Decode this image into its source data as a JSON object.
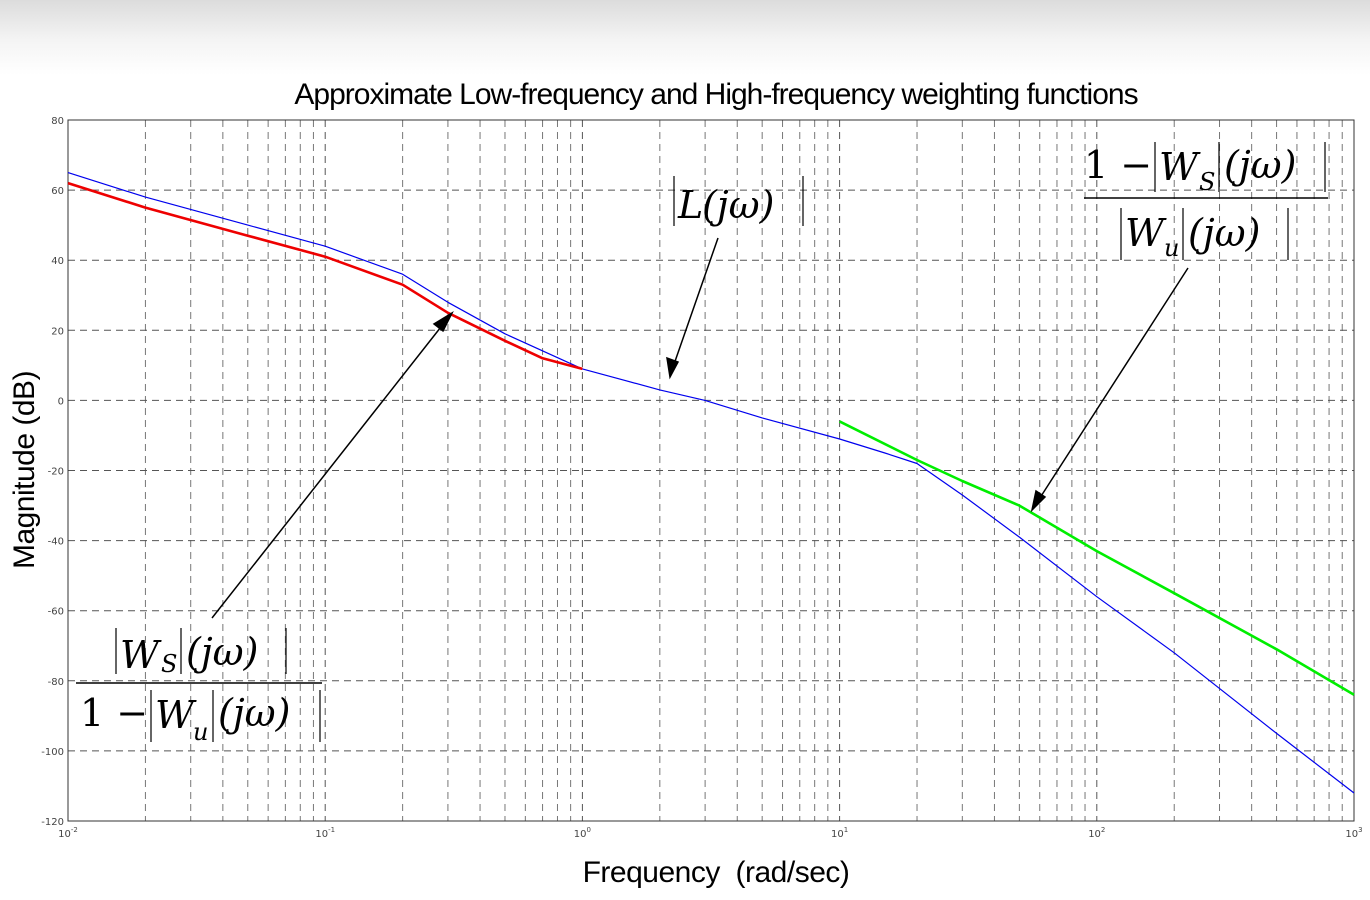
{
  "chart_data": {
    "type": "line",
    "title": "Approximate Low-frequency and High-frequency weighting functions",
    "xlabel": "Frequency  (rad/sec)",
    "ylabel": "Magnitude (dB)",
    "xscale": "log",
    "xlim": [
      0.01,
      1000
    ],
    "ylim": [
      -120,
      80
    ],
    "grid": true,
    "x_ticks": [
      {
        "base": "10",
        "exp": "-2"
      },
      {
        "base": "10",
        "exp": "-1"
      },
      {
        "base": "10",
        "exp": "0"
      },
      {
        "base": "10",
        "exp": "1"
      },
      {
        "base": "10",
        "exp": "2"
      },
      {
        "base": "10",
        "exp": "3"
      }
    ],
    "y_ticks": [
      "80",
      "60",
      "40",
      "20",
      "0",
      "-20",
      "-40",
      "-60",
      "-80",
      "-100",
      "-120"
    ],
    "series": [
      {
        "color": "#0000ee",
        "x": [
          0.01,
          0.02,
          0.05,
          0.1,
          0.2,
          0.3,
          0.5,
          1,
          2,
          3,
          5,
          10,
          15,
          20,
          30,
          50,
          100,
          200,
          500,
          1000
        ],
        "y": [
          65,
          58,
          50,
          44,
          36,
          28,
          19,
          9,
          3,
          0,
          -5,
          -11,
          -15,
          -18,
          -27,
          -39,
          -56,
          -72,
          -95,
          -112
        ]
      },
      {
        "color": "#ee0000",
        "x": [
          0.01,
          0.02,
          0.05,
          0.1,
          0.2,
          0.3,
          0.5,
          0.7,
          1
        ],
        "y": [
          62,
          55,
          47,
          41,
          33,
          25,
          17,
          12,
          9
        ]
      },
      {
        "color": "#00ee00",
        "x": [
          10,
          20,
          30,
          50,
          100,
          200,
          500,
          1000
        ],
        "y": [
          -6,
          -17,
          -23,
          -30,
          -43,
          -55,
          -71,
          -84
        ]
      }
    ]
  },
  "annotations": {
    "ws_over": {
      "num_ws": "W",
      "num_sub": "S",
      "num_arg": "(jω)",
      "den_one": "1 −",
      "den_wu": "W",
      "den_sub": "u",
      "den_arg": "(jω)"
    },
    "l": {
      "name": "L",
      "arg": "(jω)"
    },
    "wu_over": {
      "num_one": "1 −",
      "num_ws": "W",
      "num_sub": "S",
      "num_arg": "(jω)",
      "den_wu": "W",
      "den_sub": "u",
      "den_arg": "(jω)"
    }
  }
}
